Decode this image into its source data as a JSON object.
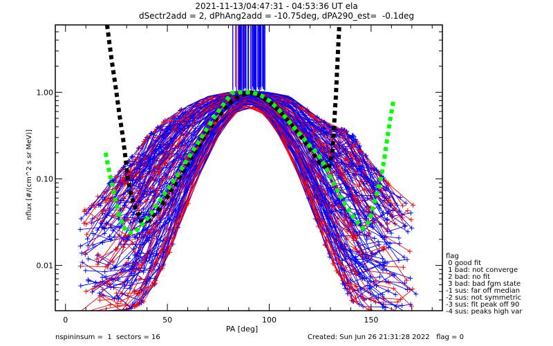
{
  "header": {
    "title_line1": "2021-11-13/04:47:31 - 04:53:36 UT ela",
    "title_line2": "dSectr2add = 2, dPhAng2add = -10.75deg, dPA290_est=  -0.1deg"
  },
  "legend": {
    "title": "flag",
    "items": [
      " 0 good fit",
      " 1 bad: not converge",
      " 2 bad: no fit",
      " 3 bad: bad fgm state",
      "-1 sus: far off median",
      "-2 sus: not symmetric",
      "-3 sus: fit peak off 90",
      "-4 sus: peaks high var"
    ]
  },
  "footer": {
    "left": "nspininsum =  1  sectors = 16",
    "right": "Created: Sun Jun 26 21:31:28 2022   flag = 0"
  },
  "colors": {
    "red_series": "#ff0000",
    "blue_series": "#0000ff",
    "black_fit": "#000000",
    "green_fit": "#00ff00"
  },
  "chart_data": {
    "type": "line",
    "title": "2021-11-13/04:47:31 - 04:53:36 UT ela",
    "subtitle": "dSectr2add = 2, dPhAng2add = -10.75deg, dPA290_est=  -0.1deg",
    "xlabel": "PA [deg]",
    "ylabel": "nflux [#/(cm^2 s sr MeV)]",
    "xlim": [
      -5,
      185
    ],
    "ylim": [
      0.003,
      6
    ],
    "yscale": "log",
    "xticks": [
      0,
      50,
      100,
      150
    ],
    "xtick_labels": [
      "0",
      "50",
      "100",
      "150"
    ],
    "yticks": [
      0.01,
      0.1,
      1.0
    ],
    "ytick_labels": [
      "0.01",
      "0.10",
      "1.00"
    ],
    "grid": false,
    "legend_placement": "right",
    "series": [
      {
        "name": "fit-black",
        "style": "thick-dashed",
        "color": "#000000",
        "segments": [
          {
            "x": [
              20.4,
              22.5,
              24.8,
              26.5,
              28.2,
              29.5,
              30.6,
              32,
              34,
              37.4,
              40.8,
              45,
              50,
              55,
              60,
              65,
              70,
              75,
              80,
              85,
              90
            ],
            "y": [
              6.0,
              2.5,
              1.08,
              0.55,
              0.3,
              0.17,
              0.1,
              0.068,
              0.048,
              0.032,
              0.033,
              0.042,
              0.062,
              0.095,
              0.15,
              0.23,
              0.36,
              0.52,
              0.72,
              0.9,
              1.0
            ]
          },
          {
            "x": [
              90,
              95,
              100,
              105,
              110,
              115,
              120,
              125,
              129,
              131,
              132.7,
              133.6,
              134.4
            ],
            "y": [
              1.0,
              0.92,
              0.78,
              0.6,
              0.45,
              0.32,
              0.22,
              0.15,
              0.13,
              0.2,
              0.9,
              2.5,
              6.0
            ]
          }
        ]
      },
      {
        "name": "fit-green",
        "style": "thick-dashed",
        "color": "#00ff00",
        "segments": [
          {
            "x": [
              19.7,
              21.5,
              23.8,
              26,
              28.9,
              31.5,
              34,
              38,
              42,
              46,
              50,
              55,
              60,
              65,
              70,
              75,
              81.6,
              86,
              91.8,
              96,
              100,
              105,
              110,
              115,
              120,
              124,
              127.6,
              132,
              137.8,
              142,
              146,
              149,
              151,
              153,
              154.8,
              156.5,
              158,
              159.5,
              161
            ],
            "y": [
              0.2,
              0.12,
              0.068,
              0.04,
              0.027,
              0.024,
              0.024,
              0.03,
              0.04,
              0.055,
              0.075,
              0.11,
              0.17,
              0.26,
              0.4,
              0.6,
              0.98,
              1.0,
              1.0,
              0.92,
              0.8,
              0.62,
              0.45,
              0.33,
              0.24,
              0.19,
              0.14,
              0.085,
              0.048,
              0.034,
              0.027,
              0.032,
              0.048,
              0.07,
              0.1,
              0.17,
              0.3,
              0.5,
              0.82
            ]
          }
        ]
      }
    ],
    "data_traces": {
      "description": "Many individual per-spin measurement traces with '+' markers, red and blue, forming a peaked distribution centered at PA ~90 deg with flux ~1.0; vertical bars near PA 82-98 extend beyond top of axis",
      "colors": [
        "#ff0000",
        "#0000ff"
      ],
      "envelope_left": {
        "x": [
          10,
          20,
          30,
          40,
          50,
          60,
          70,
          80,
          90
        ],
        "y_low": [
          0.003,
          0.003,
          0.003,
          0.004,
          0.012,
          0.05,
          0.2,
          0.5,
          0.8
        ],
        "y_high": [
          0.05,
          0.08,
          0.15,
          0.3,
          0.5,
          0.7,
          0.9,
          1.0,
          1.05
        ]
      },
      "envelope_right": {
        "x": [
          90,
          100,
          110,
          120,
          130,
          140,
          150,
          160,
          170
        ],
        "y_low": [
          0.8,
          0.5,
          0.2,
          0.05,
          0.012,
          0.004,
          0.003,
          0.003,
          0.003
        ],
        "y_high": [
          1.05,
          1.0,
          0.9,
          0.6,
          0.4,
          0.35,
          0.15,
          0.08,
          0.05
        ]
      },
      "vertical_spike_range_x": [
        82,
        98
      ]
    }
  }
}
